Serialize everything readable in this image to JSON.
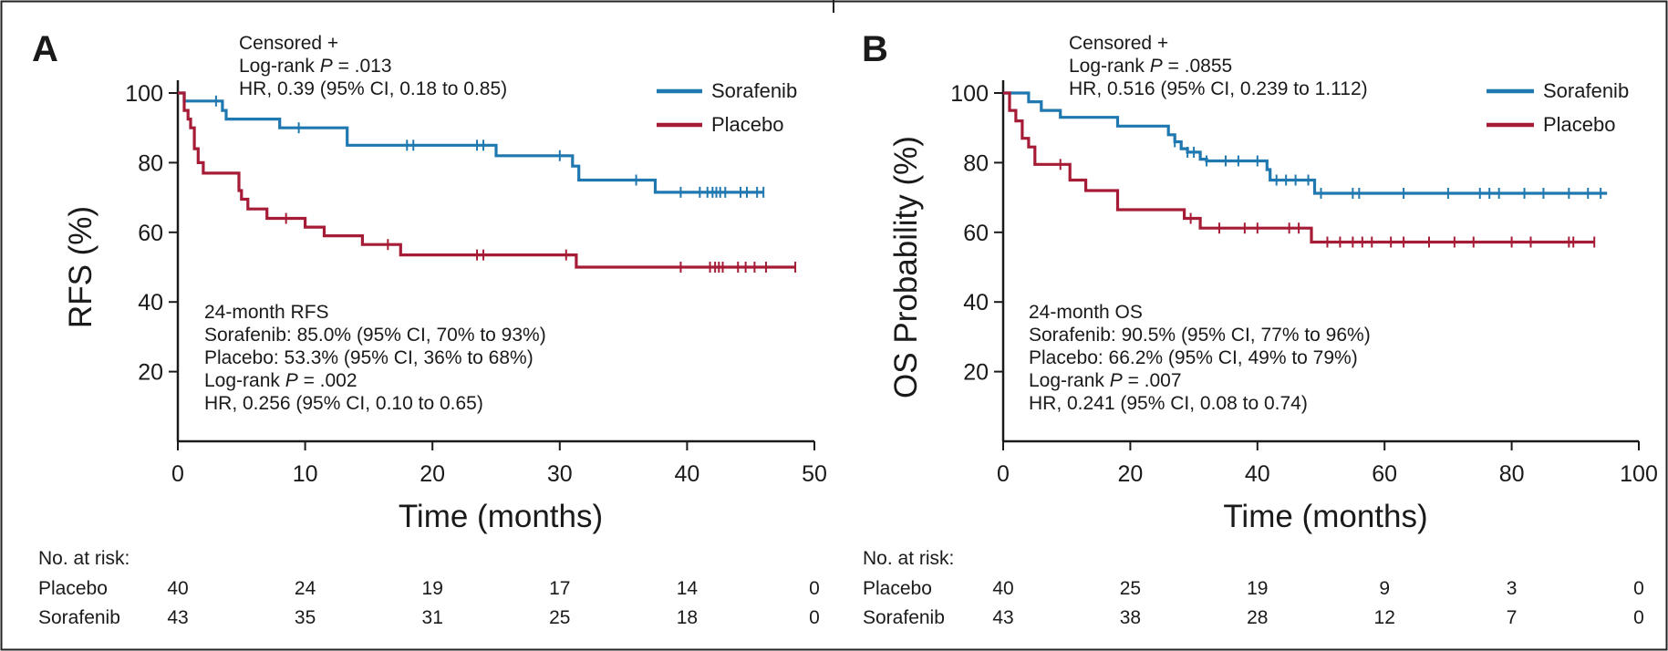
{
  "colors": {
    "sorafenib": "#1f78b0",
    "placebo": "#a61c36",
    "axis": "#1a1a1a",
    "frame": "#222222"
  },
  "chart_data": [
    {
      "type": "line",
      "subtype": "kaplan-meier",
      "panel": "A",
      "ylabel": "RFS (%)",
      "xlabel": "Time (months)",
      "xlim": [
        0,
        50
      ],
      "ylim": [
        0,
        100
      ],
      "xticks": [
        0,
        10,
        20,
        30,
        40,
        50
      ],
      "yticks": [
        20,
        40,
        60,
        80,
        100
      ],
      "grid": false,
      "legend_position": "top-right",
      "censor_legend": "Censored  +",
      "stats_top": [
        {
          "pre": "Log-rank ",
          "italic": "P",
          "post": " = .013"
        },
        {
          "pre": "HR, 0.39 (95% CI, 0.18 to 0.85)",
          "italic": "",
          "post": ""
        }
      ],
      "stats_bottom": [
        {
          "pre": "24-month RFS",
          "italic": "",
          "post": ""
        },
        {
          "pre": "Sorafenib: 85.0% (95% CI, 70% to 93%)",
          "italic": "",
          "post": ""
        },
        {
          "pre": "Placebo: 53.3% (95% CI, 36% to 68%)",
          "italic": "",
          "post": ""
        },
        {
          "pre": "Log-rank ",
          "italic": "P",
          "post": " = .002"
        },
        {
          "pre": "HR, 0.256 (95% CI, 0.10 to 0.65)",
          "italic": "",
          "post": ""
        }
      ],
      "series": [
        {
          "name": "Sorafenib",
          "steps": [
            [
              0,
              100
            ],
            [
              0.5,
              97.7
            ],
            [
              3,
              97.7
            ],
            [
              3.5,
              95
            ],
            [
              3.8,
              92.5
            ],
            [
              8,
              90
            ],
            [
              13,
              90
            ],
            [
              13.3,
              85
            ],
            [
              24,
              85
            ],
            [
              25,
              82
            ],
            [
              30,
              82
            ],
            [
              31,
              79
            ],
            [
              31.5,
              75
            ],
            [
              37,
              75
            ],
            [
              37.5,
              71.5
            ],
            [
              46,
              71.5
            ]
          ],
          "censored": [
            [
              3,
              97.7
            ],
            [
              9.5,
              90
            ],
            [
              18,
              85
            ],
            [
              18.5,
              85
            ],
            [
              23.5,
              85
            ],
            [
              24,
              85
            ],
            [
              30,
              82
            ],
            [
              36,
              75
            ],
            [
              39.5,
              71.5
            ],
            [
              41,
              71.5
            ],
            [
              41.6,
              71.5
            ],
            [
              42,
              71.5
            ],
            [
              42.3,
              71.5
            ],
            [
              42.6,
              71.5
            ],
            [
              43,
              71.5
            ],
            [
              44.2,
              71.5
            ],
            [
              44.7,
              71.5
            ],
            [
              45.5,
              71.5
            ],
            [
              46,
              71.5
            ]
          ]
        },
        {
          "name": "Placebo",
          "steps": [
            [
              0,
              100
            ],
            [
              0.5,
              95
            ],
            [
              0.8,
              92.5
            ],
            [
              1,
              90
            ],
            [
              1.3,
              84
            ],
            [
              1.6,
              80
            ],
            [
              2,
              77
            ],
            [
              4.6,
              77
            ],
            [
              4.8,
              72
            ],
            [
              5,
              69.5
            ],
            [
              5.5,
              66.7
            ],
            [
              7,
              64
            ],
            [
              10,
              61.5
            ],
            [
              11.5,
              59
            ],
            [
              14.5,
              56.5
            ],
            [
              17.5,
              53.5
            ],
            [
              31,
              53.5
            ],
            [
              31.3,
              50
            ],
            [
              48.5,
              50
            ]
          ],
          "censored": [
            [
              8.5,
              64
            ],
            [
              16.5,
              56.5
            ],
            [
              23.5,
              53.5
            ],
            [
              24,
              53.5
            ],
            [
              30.5,
              53.5
            ],
            [
              39.5,
              50
            ],
            [
              41.8,
              50
            ],
            [
              42.2,
              50
            ],
            [
              42.5,
              50
            ],
            [
              42.8,
              50
            ],
            [
              44,
              50
            ],
            [
              44.6,
              50
            ],
            [
              45.3,
              50
            ],
            [
              46.2,
              50
            ],
            [
              48.5,
              50
            ]
          ]
        }
      ],
      "risk_table": {
        "title": "No. at risk:",
        "times": [
          0,
          10,
          20,
          30,
          40,
          50
        ],
        "rows": [
          {
            "label": "Placebo",
            "values": [
              "40",
              "24",
              "19",
              "17",
              "14",
              "0"
            ]
          },
          {
            "label": "Sorafenib",
            "values": [
              "43",
              "35",
              "31",
              "25",
              "18",
              "0"
            ]
          }
        ]
      }
    },
    {
      "type": "line",
      "subtype": "kaplan-meier",
      "panel": "B",
      "ylabel": "OS Probability (%)",
      "xlabel": "Time (months)",
      "xlim": [
        0,
        100
      ],
      "ylim": [
        0,
        100
      ],
      "xticks": [
        0,
        20,
        40,
        60,
        80,
        100
      ],
      "yticks": [
        20,
        40,
        60,
        80,
        100
      ],
      "grid": false,
      "legend_position": "top-right",
      "censor_legend": "Censored  +",
      "stats_top": [
        {
          "pre": "Log-rank ",
          "italic": "P",
          "post": " = .0855"
        },
        {
          "pre": "HR, 0.516 (95% CI, 0.239 to 1.112)",
          "italic": "",
          "post": ""
        }
      ],
      "stats_bottom": [
        {
          "pre": "24-month OS",
          "italic": "",
          "post": ""
        },
        {
          "pre": "Sorafenib: 90.5% (95% CI, 77% to 96%)",
          "italic": "",
          "post": ""
        },
        {
          "pre": "Placebo: 66.2% (95% CI, 49% to 79%)",
          "italic": "",
          "post": ""
        },
        {
          "pre": "Log-rank ",
          "italic": "P",
          "post": " = .007"
        },
        {
          "pre": "HR, 0.241 (95% CI, 0.08 to 0.74)",
          "italic": "",
          "post": ""
        }
      ],
      "series": [
        {
          "name": "Sorafenib",
          "steps": [
            [
              0,
              100
            ],
            [
              3,
              100
            ],
            [
              4,
              97.5
            ],
            [
              6,
              95
            ],
            [
              9,
              93
            ],
            [
              18,
              90.5
            ],
            [
              25,
              90.5
            ],
            [
              26,
              88
            ],
            [
              27,
              86
            ],
            [
              28,
              84
            ],
            [
              29,
              83
            ],
            [
              31,
              81
            ],
            [
              32,
              80.5
            ],
            [
              41,
              80.5
            ],
            [
              41.5,
              78
            ],
            [
              42,
              75
            ],
            [
              48,
              75
            ],
            [
              49,
              71.2
            ],
            [
              95,
              71.2
            ]
          ],
          "censored": [
            [
              27,
              86
            ],
            [
              29,
              83
            ],
            [
              30,
              83
            ],
            [
              32,
              80.5
            ],
            [
              35,
              80.5
            ],
            [
              37,
              80.5
            ],
            [
              40,
              80.5
            ],
            [
              43,
              75
            ],
            [
              44.5,
              75
            ],
            [
              46,
              75
            ],
            [
              48,
              75
            ],
            [
              50,
              71.2
            ],
            [
              55,
              71.2
            ],
            [
              56,
              71.2
            ],
            [
              63,
              71.2
            ],
            [
              70,
              71.2
            ],
            [
              75,
              71.2
            ],
            [
              76.5,
              71.2
            ],
            [
              78,
              71.2
            ],
            [
              82,
              71.2
            ],
            [
              85,
              71.2
            ],
            [
              89,
              71.2
            ],
            [
              92,
              71.2
            ],
            [
              94,
              71.2
            ]
          ]
        },
        {
          "name": "Placebo",
          "steps": [
            [
              0,
              100
            ],
            [
              1,
              95
            ],
            [
              2,
              92
            ],
            [
              3,
              87
            ],
            [
              4,
              84.5
            ],
            [
              5,
              79.5
            ],
            [
              10,
              79.5
            ],
            [
              10.5,
              75
            ],
            [
              13,
              72
            ],
            [
              18,
              66.5
            ],
            [
              28,
              66.5
            ],
            [
              28.5,
              64
            ],
            [
              31,
              61.2
            ],
            [
              48,
              61.2
            ],
            [
              48.5,
              57.2
            ],
            [
              93,
              57.2
            ]
          ],
          "censored": [
            [
              9,
              79.5
            ],
            [
              29.5,
              64
            ],
            [
              34,
              61.2
            ],
            [
              38,
              61.2
            ],
            [
              40,
              61.2
            ],
            [
              45,
              61.2
            ],
            [
              46.5,
              61.2
            ],
            [
              51,
              57.2
            ],
            [
              53,
              57.2
            ],
            [
              55,
              57.2
            ],
            [
              56.5,
              57.2
            ],
            [
              58,
              57.2
            ],
            [
              61,
              57.2
            ],
            [
              63,
              57.2
            ],
            [
              67,
              57.2
            ],
            [
              71,
              57.2
            ],
            [
              74,
              57.2
            ],
            [
              80,
              57.2
            ],
            [
              83,
              57.2
            ],
            [
              89,
              57.2
            ],
            [
              89.7,
              57.2
            ],
            [
              93,
              57.2
            ]
          ]
        }
      ],
      "risk_table": {
        "title": "No. at risk:",
        "times": [
          0,
          20,
          40,
          60,
          80,
          100
        ],
        "rows": [
          {
            "label": "Placebo",
            "values": [
              "40",
              "25",
              "19",
              "9",
              "3",
              "0"
            ]
          },
          {
            "label": "Sorafenib",
            "values": [
              "43",
              "38",
              "28",
              "12",
              "7",
              "0"
            ]
          }
        ]
      }
    }
  ]
}
